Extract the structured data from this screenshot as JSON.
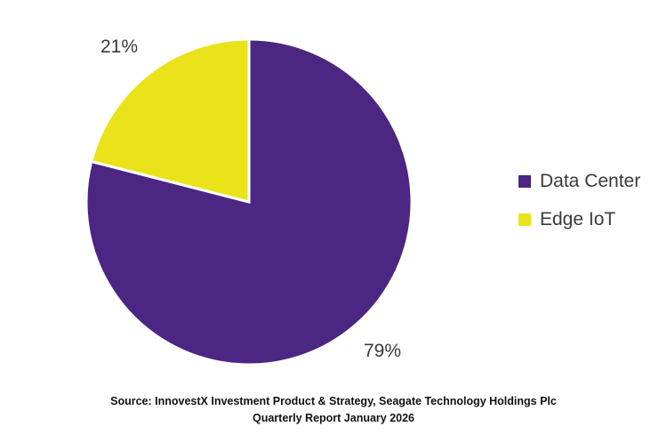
{
  "chart_data": {
    "type": "pie",
    "categories": [
      "Data Center",
      "Edge IoT"
    ],
    "values": [
      79,
      21
    ],
    "data_labels": [
      "79%",
      "21%"
    ],
    "colors": [
      "#4b2682",
      "#eae319"
    ],
    "legend_position": "right",
    "start_angle": "top, clockwise"
  },
  "source": {
    "line1": "Source: InnovestX Investment Product & Strategy, Seagate Technology Holdings Plc",
    "line2": "Quarterly Report January 2026"
  }
}
